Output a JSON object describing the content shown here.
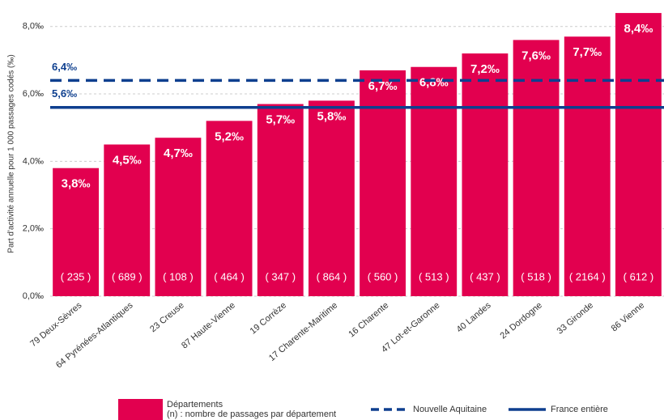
{
  "chart_data": {
    "type": "bar",
    "y_label": "Part d'activité annuelle pour 1 000 passages codés (‰)",
    "categories": [
      "79 Deux-Sèvres",
      "64 Pyrénées-Atlantiques",
      "23 Creuse",
      "87 Haute-Vienne",
      "19 Corrèze",
      "17 Charente-Maritime",
      "16 Charente",
      "47 Lot-et-Garonne",
      "40 Landes",
      "24 Dordogne",
      "33 Gironde",
      "86 Vienne"
    ],
    "series": [
      {
        "name": "Départements",
        "note": "(n) : nombre de passages par département",
        "color": "#e2004f",
        "values": [
          3.8,
          4.5,
          4.7,
          5.2,
          5.7,
          5.8,
          6.7,
          6.8,
          7.2,
          7.6,
          7.7,
          8.4
        ],
        "value_labels": [
          "3,8‰",
          "4,5‰",
          "4,7‰",
          "5,2‰",
          "5,7‰",
          "5,8‰",
          "6,7‰",
          "6,8‰",
          "7,2‰",
          "7,6‰",
          "7,7‰",
          "8,4‰"
        ],
        "count_labels": [
          "( 235 )",
          "( 689 )",
          "( 108 )",
          "( 464 )",
          "( 347 )",
          "( 864 )",
          "( 560 )",
          "( 513 )",
          "( 437 )",
          "( 518 )",
          "( 2164 )",
          "( 612 )"
        ]
      }
    ],
    "reference_lines": [
      {
        "name": "Nouvelle Aquitaine",
        "value": 6.4,
        "label": "6,4‰",
        "style": "dashed",
        "color": "#0e3f8f"
      },
      {
        "name": "France entière",
        "value": 5.6,
        "label": "5,6‰",
        "style": "solid",
        "color": "#0e3f8f"
      }
    ],
    "ylim": [
      0,
      8.45
    ],
    "yticks": [
      {
        "value": 0,
        "label": "0,0‰"
      },
      {
        "value": 2,
        "label": "2,0‰"
      },
      {
        "value": 4,
        "label": "4,0‰"
      },
      {
        "value": 6,
        "label": "6,0‰"
      },
      {
        "value": 8,
        "label": "8,0‰"
      }
    ],
    "grid": true
  }
}
